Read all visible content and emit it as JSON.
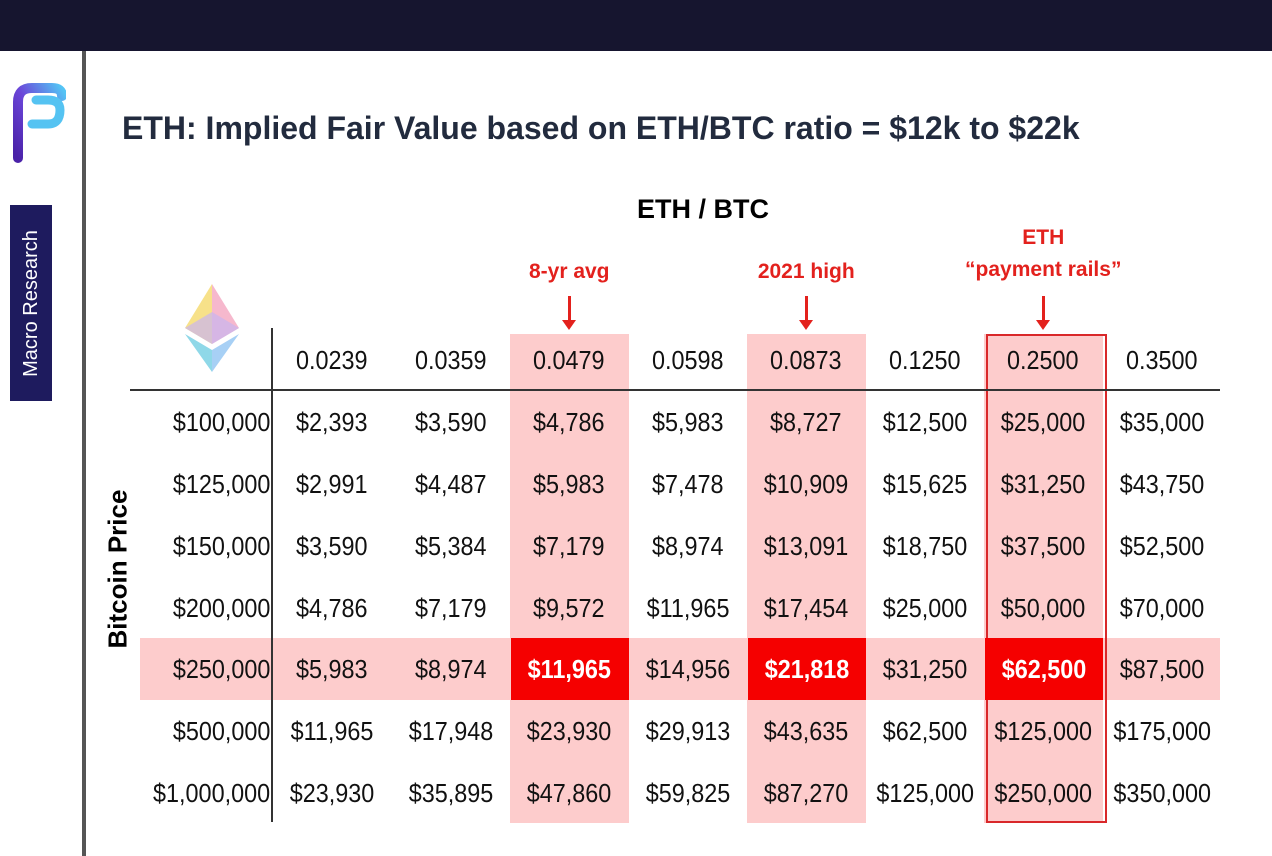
{
  "sidebar": {
    "badge": "Macro Research"
  },
  "title": "ETH: Implied Fair Value based on ETH/BTC ratio = $12k to $22k",
  "axis_title": "ETH / BTC",
  "y_axis_title": "Bitcoin Price",
  "annotations": [
    {
      "label": "8-yr avg",
      "column": 2
    },
    {
      "label": "2021 high",
      "column": 4
    },
    {
      "label": "ETH\n“payment rails”",
      "column": 6
    }
  ],
  "colors": {
    "highlight": "#fdcccc",
    "hot": "#f50000",
    "annotation": "#e3211d"
  },
  "chart_data": {
    "type": "table",
    "columns": [
      "0.0239",
      "0.0359",
      "0.0479",
      "0.0598",
      "0.0873",
      "0.1250",
      "0.2500",
      "0.3500"
    ],
    "highlight_columns": [
      2,
      4,
      6
    ],
    "highlight_row": 4,
    "rows": [
      {
        "btc": "$100,000",
        "values": [
          "$2,393",
          "$3,590",
          "$4,786",
          "$5,983",
          "$8,727",
          "$12,500",
          "$25,000",
          "$35,000"
        ]
      },
      {
        "btc": "$125,000",
        "values": [
          "$2,991",
          "$4,487",
          "$5,983",
          "$7,478",
          "$10,909",
          "$15,625",
          "$31,250",
          "$43,750"
        ]
      },
      {
        "btc": "$150,000",
        "values": [
          "$3,590",
          "$5,384",
          "$7,179",
          "$8,974",
          "$13,091",
          "$18,750",
          "$37,500",
          "$52,500"
        ]
      },
      {
        "btc": "$200,000",
        "values": [
          "$4,786",
          "$7,179",
          "$9,572",
          "$11,965",
          "$17,454",
          "$25,000",
          "$50,000",
          "$70,000"
        ]
      },
      {
        "btc": "$250,000",
        "values": [
          "$5,983",
          "$8,974",
          "$11,965",
          "$14,956",
          "$21,818",
          "$31,250",
          "$62,500",
          "$87,500"
        ]
      },
      {
        "btc": "$500,000",
        "values": [
          "$11,965",
          "$17,948",
          "$23,930",
          "$29,913",
          "$43,635",
          "$62,500",
          "$125,000",
          "$175,000"
        ]
      },
      {
        "btc": "$1,000,000",
        "values": [
          "$23,930",
          "$35,895",
          "$47,860",
          "$59,825",
          "$87,270",
          "$125,000",
          "$250,000",
          "$350,000"
        ]
      }
    ]
  }
}
